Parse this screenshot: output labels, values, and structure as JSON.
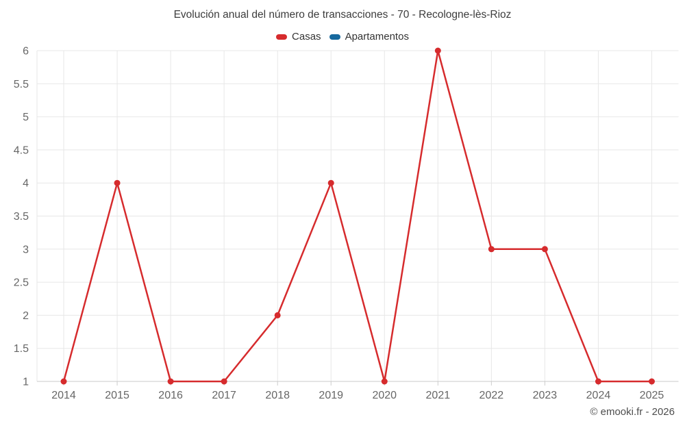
{
  "chart": {
    "title": "Evolución anual del número de transacciones - 70 - Recologne-lès-Rioz"
  },
  "footer": {
    "copyright": "© emooki.fr - 2026"
  },
  "colors": {
    "casas": "#d62b2d",
    "apartamentos": "#17699e",
    "grid_line": "#e7e7e7",
    "axis_line": "#c9c9c9",
    "tick_mark": "#cccccc",
    "axis_text": "#666666",
    "title_text": "#3c3c3c",
    "legend_text": "#333333",
    "background": "#ffffff"
  },
  "chart_data": {
    "type": "line",
    "title": "Evolución anual del número de transacciones - 70 - Recologne-lès-Rioz",
    "categories": [
      "2014",
      "2015",
      "2016",
      "2017",
      "2018",
      "2019",
      "2020",
      "2021",
      "2022",
      "2023",
      "2024",
      "2025"
    ],
    "series": [
      {
        "name": "Casas",
        "color": "#d62b2d",
        "values": [
          1,
          4,
          1,
          1,
          2,
          4,
          1,
          6,
          3,
          3,
          1,
          1
        ]
      },
      {
        "name": "Apartamentos",
        "color": "#17699e",
        "values": []
      }
    ],
    "xlabel": "",
    "ylabel": "",
    "ylim": [
      1,
      6
    ],
    "ytick_step": 0.5,
    "grid": true,
    "legend_position": "top",
    "marker": "circle"
  }
}
